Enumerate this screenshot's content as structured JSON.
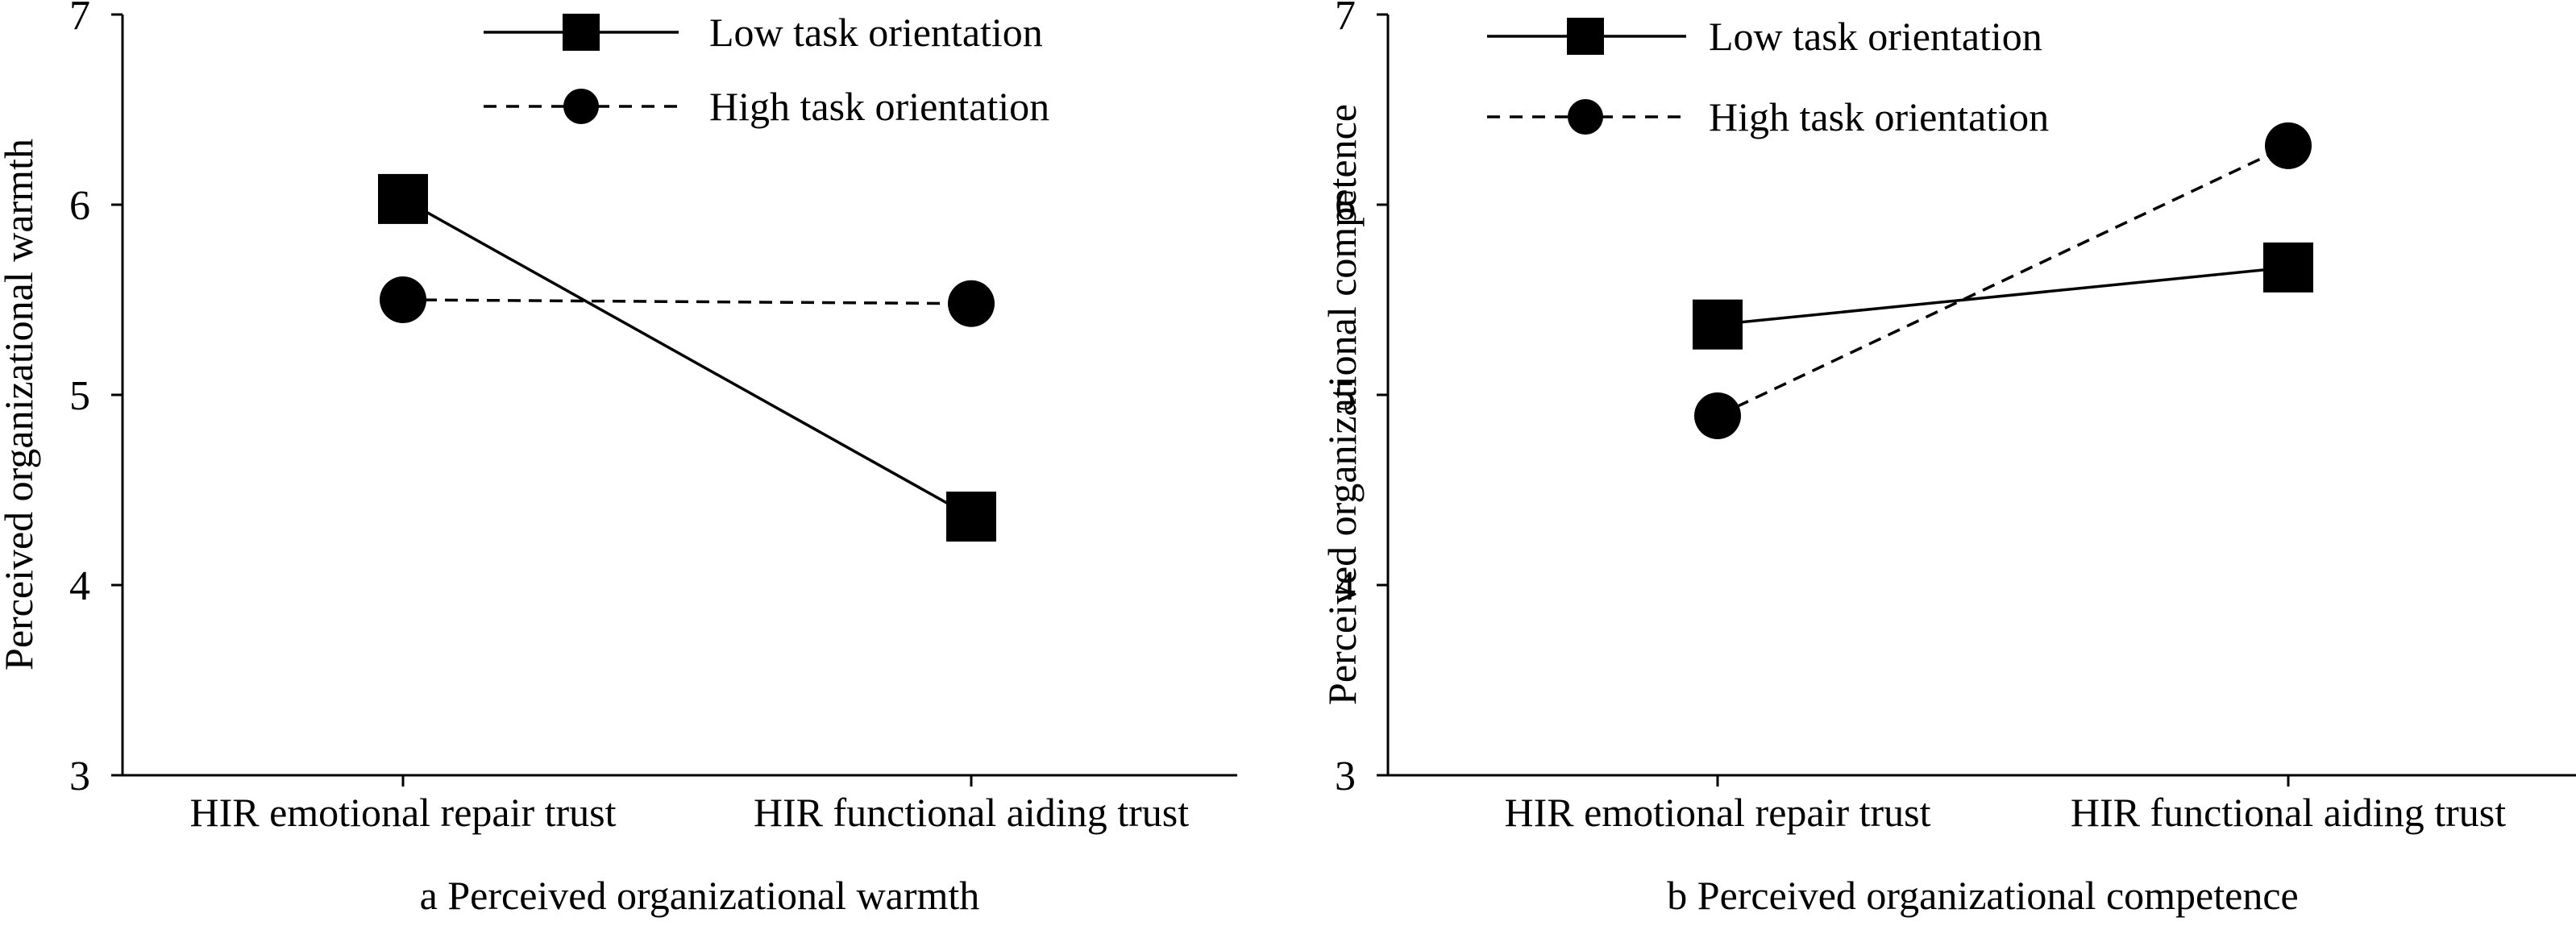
{
  "chart_data": [
    {
      "type": "line",
      "caption": "a  Perceived organizational warmth",
      "ylabel": "Perceived organizational warmth",
      "xlabel": "",
      "categories": [
        "HIR emotional repair trust",
        "HIR functional aiding trust"
      ],
      "ylim": [
        3,
        7
      ],
      "yticks": [
        3,
        4,
        5,
        6,
        7
      ],
      "grid": false,
      "legend_position": "top-center",
      "series": [
        {
          "name": "Low task orientation",
          "marker": "square",
          "line_style": "solid",
          "values": [
            6.03,
            4.36
          ]
        },
        {
          "name": "High task orientation",
          "marker": "circle",
          "line_style": "dashed",
          "values": [
            5.5,
            5.48
          ]
        }
      ]
    },
    {
      "type": "line",
      "caption": "b  Perceived organizational competence",
      "ylabel": "Perceived organizational competence",
      "xlabel": "",
      "categories": [
        "HIR emotional repair trust",
        "HIR functional aiding trust"
      ],
      "ylim": [
        3,
        7
      ],
      "yticks": [
        3,
        4,
        5,
        6,
        7
      ],
      "grid": false,
      "legend_position": "top-left",
      "series": [
        {
          "name": "Low task orientation",
          "marker": "square",
          "line_style": "solid",
          "values": [
            5.37,
            5.67
          ]
        },
        {
          "name": "High task orientation",
          "marker": "circle",
          "line_style": "dashed",
          "values": [
            4.89,
            6.31
          ]
        }
      ]
    }
  ]
}
